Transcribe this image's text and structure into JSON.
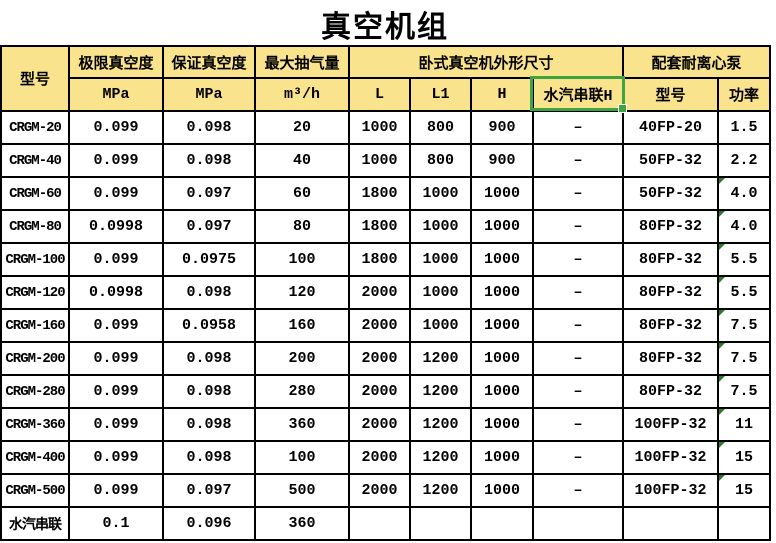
{
  "title": "真空机组",
  "colors": {
    "header_bg": "#fae38d",
    "selection_green": "#3fa33f",
    "error_triangle_green": "#2a7b2a",
    "grid_line": "#000000",
    "text": "#000000"
  },
  "selection": {
    "selected_cell_label": "水汽串联H",
    "has_fill_handle": true
  },
  "table": {
    "header_row1": [
      {
        "label": "型号",
        "name": "header-model",
        "rowspan": 2
      },
      {
        "label": "极限真空度",
        "name": "header-ultimate-vacuum"
      },
      {
        "label": "保证真空度",
        "name": "header-guaranteed-vacuum"
      },
      {
        "label": "最大抽气量",
        "name": "header-max-capacity"
      },
      {
        "label": "卧式真空机外形尺寸",
        "name": "header-dimensions-group",
        "colspan": 4
      },
      {
        "label": "配套耐离心泵",
        "name": "header-pump-group",
        "colspan": 2
      }
    ],
    "header_row2": [
      {
        "label": "MPa",
        "name": "header-ultimate-vacuum-unit"
      },
      {
        "label": "MPa",
        "name": "header-guaranteed-vacuum-unit"
      },
      {
        "label": "m³/h",
        "name": "header-max-capacity-unit"
      },
      {
        "label": "L",
        "name": "header-dim-l"
      },
      {
        "label": "L1",
        "name": "header-dim-l1"
      },
      {
        "label": "H",
        "name": "header-dim-h"
      },
      {
        "label": "水汽串联H",
        "name": "header-steam-series-h",
        "selected": true
      },
      {
        "label": "型号",
        "name": "header-pump-model"
      },
      {
        "label": "功率",
        "name": "header-pump-power"
      }
    ],
    "column_keys": [
      "model",
      "ultimate_vacuum",
      "guaranteed_vacuum",
      "max_capacity",
      "dim_l",
      "dim_l1",
      "dim_h",
      "steam_series_h",
      "pump_model",
      "pump_power"
    ],
    "rows": [
      {
        "cells": [
          "CRGM-20",
          "0.099",
          "0.098",
          "20",
          "1000",
          "800",
          "900",
          "–",
          "40FP-20",
          "1.5"
        ],
        "power_error_triangle": false
      },
      {
        "cells": [
          "CRGM-40",
          "0.099",
          "0.098",
          "40",
          "1000",
          "800",
          "900",
          "–",
          "50FP-32",
          "2.2"
        ],
        "power_error_triangle": false
      },
      {
        "cells": [
          "CRGM-60",
          "0.099",
          "0.097",
          "60",
          "1800",
          "1000",
          "1000",
          "–",
          "50FP-32",
          "4.0"
        ],
        "power_error_triangle": true
      },
      {
        "cells": [
          "CRGM-80",
          "0.0998",
          "0.097",
          "80",
          "1800",
          "1000",
          "1000",
          "–",
          "80FP-32",
          "4.0"
        ],
        "power_error_triangle": true
      },
      {
        "cells": [
          "CRGM-100",
          "0.099",
          "0.0975",
          "100",
          "1800",
          "1000",
          "1000",
          "–",
          "80FP-32",
          "5.5"
        ],
        "power_error_triangle": true
      },
      {
        "cells": [
          "CRGM-120",
          "0.0998",
          "0.098",
          "120",
          "2000",
          "1000",
          "1000",
          "–",
          "80FP-32",
          "5.5"
        ],
        "power_error_triangle": true
      },
      {
        "cells": [
          "CRGM-160",
          "0.099",
          "0.0958",
          "160",
          "2000",
          "1000",
          "1000",
          "–",
          "80FP-32",
          "7.5"
        ],
        "power_error_triangle": true
      },
      {
        "cells": [
          "CRGM-200",
          "0.099",
          "0.098",
          "200",
          "2000",
          "1200",
          "1000",
          "–",
          "80FP-32",
          "7.5"
        ],
        "power_error_triangle": true
      },
      {
        "cells": [
          "CRGM-280",
          "0.099",
          "0.098",
          "280",
          "2000",
          "1200",
          "1000",
          "–",
          "80FP-32",
          "7.5"
        ],
        "power_error_triangle": true
      },
      {
        "cells": [
          "CRGM-360",
          "0.099",
          "0.098",
          "360",
          "2000",
          "1200",
          "1000",
          "–",
          "100FP-32",
          "11"
        ],
        "power_error_triangle": true
      },
      {
        "cells": [
          "CRGM-400",
          "0.099",
          "0.098",
          "100",
          "2000",
          "1200",
          "1000",
          "–",
          "100FP-32",
          "15"
        ],
        "power_error_triangle": true
      },
      {
        "cells": [
          "CRGM-500",
          "0.099",
          "0.097",
          "500",
          "2000",
          "1200",
          "1000",
          "–",
          "100FP-32",
          "15"
        ],
        "power_error_triangle": true
      },
      {
        "cells": [
          "水汽串联",
          "0.1",
          "0.096",
          "360",
          "",
          "",
          "",
          "",
          "",
          ""
        ],
        "power_error_triangle": false
      }
    ]
  }
}
